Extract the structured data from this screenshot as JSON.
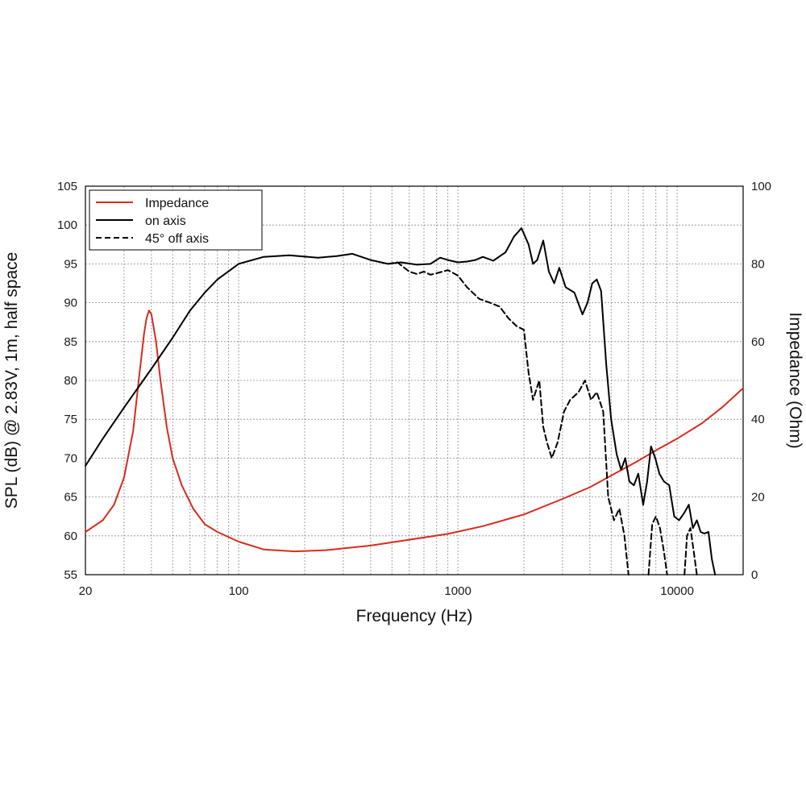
{
  "chart_data": {
    "type": "line",
    "title": "",
    "xlabel": "Frequency (Hz)",
    "ylabel": "SPL (dB) @ 2.83V, 1m, half space",
    "y2label": "Impedance (Ohm)",
    "xscale": "log",
    "xlim": [
      20,
      20000
    ],
    "ylim": [
      55,
      105
    ],
    "y2lim": [
      0,
      100
    ],
    "grid": true,
    "legend_position": "top-left",
    "x_tick_labels": [
      "20",
      "100",
      "1000",
      "10000"
    ],
    "x_tick_values": [
      20,
      100,
      1000,
      10000
    ],
    "y_ticks": [
      55,
      60,
      65,
      70,
      75,
      80,
      85,
      90,
      95,
      100,
      105
    ],
    "y2_ticks": [
      0,
      20,
      40,
      60,
      80,
      100
    ],
    "colors": {
      "impedance": "#d62c1f",
      "on_axis": "#000000",
      "off_axis": "#000000"
    },
    "series": [
      {
        "name": "Impedance",
        "axis": "right",
        "style": "solid",
        "color": "#d62c1f",
        "points": [
          [
            20,
            11
          ],
          [
            24,
            14
          ],
          [
            27,
            18
          ],
          [
            30,
            25
          ],
          [
            33,
            37
          ],
          [
            35,
            50
          ],
          [
            37,
            62
          ],
          [
            38,
            66
          ],
          [
            39,
            68
          ],
          [
            40,
            67
          ],
          [
            42,
            60
          ],
          [
            44,
            50
          ],
          [
            47,
            38
          ],
          [
            50,
            30
          ],
          [
            55,
            23
          ],
          [
            62,
            17
          ],
          [
            70,
            13
          ],
          [
            80,
            11
          ],
          [
            100,
            8.5
          ],
          [
            130,
            6.5
          ],
          [
            180,
            6
          ],
          [
            250,
            6.3
          ],
          [
            400,
            7.5
          ],
          [
            600,
            9
          ],
          [
            900,
            10.5
          ],
          [
            1300,
            12.5
          ],
          [
            2000,
            15.5
          ],
          [
            3000,
            19.5
          ],
          [
            4000,
            22.5
          ],
          [
            5000,
            25.5
          ],
          [
            6500,
            29
          ],
          [
            8000,
            32
          ],
          [
            10000,
            35
          ],
          [
            13000,
            39
          ],
          [
            16000,
            43
          ],
          [
            20000,
            48
          ]
        ]
      },
      {
        "name": "on axis",
        "axis": "left",
        "style": "solid",
        "color": "#000000",
        "points": [
          [
            20,
            69
          ],
          [
            24,
            72.5
          ],
          [
            30,
            76.5
          ],
          [
            40,
            81.5
          ],
          [
            50,
            85.5
          ],
          [
            60,
            89
          ],
          [
            70,
            91.3
          ],
          [
            80,
            93
          ],
          [
            100,
            95
          ],
          [
            130,
            95.9
          ],
          [
            170,
            96.1
          ],
          [
            230,
            95.8
          ],
          [
            280,
            96
          ],
          [
            330,
            96.3
          ],
          [
            400,
            95.5
          ],
          [
            480,
            95
          ],
          [
            550,
            95.2
          ],
          [
            650,
            94.9
          ],
          [
            750,
            95
          ],
          [
            830,
            95.8
          ],
          [
            900,
            95.5
          ],
          [
            1000,
            95.2
          ],
          [
            1100,
            95.3
          ],
          [
            1200,
            95.5
          ],
          [
            1300,
            95.9
          ],
          [
            1450,
            95.4
          ],
          [
            1650,
            96.5
          ],
          [
            1800,
            98.5
          ],
          [
            1950,
            99.6
          ],
          [
            2100,
            97.5
          ],
          [
            2200,
            95
          ],
          [
            2300,
            95.5
          ],
          [
            2450,
            98
          ],
          [
            2600,
            94
          ],
          [
            2750,
            92.5
          ],
          [
            2900,
            94.5
          ],
          [
            3100,
            92
          ],
          [
            3400,
            91.3
          ],
          [
            3700,
            88.5
          ],
          [
            3900,
            90
          ],
          [
            4100,
            92.5
          ],
          [
            4300,
            93
          ],
          [
            4500,
            91.5
          ],
          [
            4750,
            82
          ],
          [
            5000,
            75
          ],
          [
            5300,
            70.5
          ],
          [
            5550,
            68.5
          ],
          [
            5800,
            70
          ],
          [
            6050,
            67
          ],
          [
            6350,
            66.5
          ],
          [
            6650,
            68
          ],
          [
            7000,
            64
          ],
          [
            7300,
            67
          ],
          [
            7600,
            71.5
          ],
          [
            7950,
            70
          ],
          [
            8300,
            68
          ],
          [
            8700,
            67
          ],
          [
            9200,
            66.5
          ],
          [
            9700,
            62.5
          ],
          [
            10200,
            62
          ],
          [
            10800,
            63
          ],
          [
            11300,
            64
          ],
          [
            11800,
            61
          ],
          [
            12300,
            62
          ],
          [
            12800,
            60.5
          ],
          [
            13300,
            60.3
          ],
          [
            13900,
            60.5
          ],
          [
            14400,
            57
          ],
          [
            14900,
            55
          ]
        ]
      },
      {
        "name": "45° off axis",
        "axis": "left",
        "style": "dashed",
        "color": "#000000",
        "points": [
          [
            480,
            95
          ],
          [
            530,
            95.2
          ],
          [
            600,
            94
          ],
          [
            650,
            93.7
          ],
          [
            700,
            94
          ],
          [
            750,
            93.6
          ],
          [
            800,
            93.8
          ],
          [
            900,
            94.2
          ],
          [
            1000,
            93.5
          ],
          [
            1100,
            92
          ],
          [
            1250,
            90.5
          ],
          [
            1400,
            90
          ],
          [
            1550,
            89.5
          ],
          [
            1700,
            88
          ],
          [
            1850,
            87
          ],
          [
            2000,
            86.5
          ],
          [
            2100,
            81
          ],
          [
            2200,
            77.5
          ],
          [
            2350,
            80
          ],
          [
            2450,
            74
          ],
          [
            2550,
            72
          ],
          [
            2680,
            70
          ],
          [
            2850,
            72
          ],
          [
            3050,
            76
          ],
          [
            3250,
            77.5
          ],
          [
            3550,
            78.5
          ],
          [
            3800,
            80
          ],
          [
            4050,
            77.5
          ],
          [
            4300,
            78.5
          ],
          [
            4600,
            76
          ],
          [
            4850,
            65
          ],
          [
            5150,
            62
          ],
          [
            5450,
            63.5
          ],
          [
            5750,
            60
          ],
          [
            6000,
            55
          ]
        ]
      },
      {
        "name": "45° off axis",
        "axis": "left",
        "style": "dashed",
        "color": "#000000",
        "points": [
          [
            7400,
            55
          ],
          [
            7700,
            61.5
          ],
          [
            8000,
            62.5
          ],
          [
            8350,
            61
          ],
          [
            8700,
            58
          ],
          [
            9000,
            55
          ]
        ]
      },
      {
        "name": "45° off axis",
        "axis": "left",
        "style": "dashed",
        "color": "#000000",
        "points": [
          [
            10800,
            55
          ],
          [
            11100,
            60
          ],
          [
            11500,
            61
          ],
          [
            11900,
            58
          ],
          [
            12300,
            55
          ]
        ]
      }
    ],
    "legend": [
      {
        "label": "Impedance",
        "color": "#d62c1f",
        "style": "solid"
      },
      {
        "label": "on axis",
        "color": "#000000",
        "style": "solid"
      },
      {
        "label": "45° off axis",
        "color": "#000000",
        "style": "dashed"
      }
    ]
  }
}
